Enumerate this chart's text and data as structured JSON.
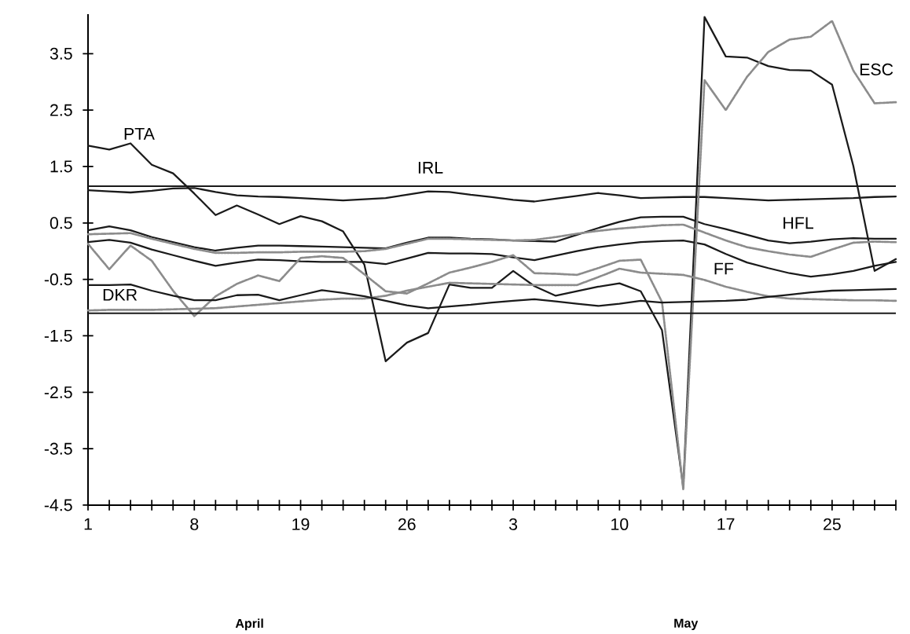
{
  "chart_data": {
    "type": "line",
    "categories": [
      "1",
      null,
      null,
      null,
      null,
      "8",
      null,
      null,
      null,
      null,
      "19",
      null,
      null,
      null,
      null,
      "26",
      null,
      null,
      null,
      null,
      "3",
      null,
      null,
      null,
      null,
      "10",
      null,
      null,
      null,
      null,
      "17",
      null,
      null,
      null,
      null,
      "25",
      null,
      null,
      null
    ],
    "ylim": [
      -4.5,
      4.2
    ],
    "yticks": [
      -4.5,
      -3.5,
      -2.5,
      -1.5,
      -0.5,
      0.5,
      1.5,
      2.5,
      3.5
    ],
    "annotations": [
      "April",
      "May"
    ],
    "ref_lines": [
      {
        "axis": "y",
        "value": 1.15,
        "color": "#1a1a1a"
      },
      {
        "axis": "y",
        "value": -1.1,
        "color": "#1a1a1a"
      }
    ],
    "series": [
      {
        "name": "PTA",
        "color": "#1a1a1a",
        "line_style": "solid",
        "values": [
          1.87,
          1.8,
          1.91,
          1.53,
          1.38,
          1.02,
          0.64,
          0.81,
          0.65,
          0.48,
          0.62,
          0.53,
          0.35,
          -0.24,
          -1.95,
          -1.62,
          -1.45,
          -0.59,
          -0.65,
          -0.65,
          -0.35,
          -0.62,
          -0.79,
          -0.71,
          -0.63,
          -0.57,
          -0.71,
          -1.4,
          -4.18,
          4.15,
          3.45,
          3.43,
          3.28,
          3.21,
          3.2,
          2.95,
          1.51,
          -0.35,
          -0.14
        ]
      },
      {
        "name": "IRL",
        "color": "#1a1a1a",
        "line_style": "solid",
        "values": [
          1.08,
          1.06,
          1.04,
          1.07,
          1.11,
          1.12,
          1.05,
          0.99,
          0.97,
          0.96,
          0.94,
          0.92,
          0.9,
          0.92,
          0.94,
          1.0,
          1.06,
          1.05,
          1.0,
          0.96,
          0.91,
          0.88,
          0.93,
          0.98,
          1.03,
          0.99,
          0.94,
          0.95,
          0.96,
          0.96,
          0.94,
          0.92,
          0.9,
          0.91,
          0.92,
          0.93,
          0.94,
          0.96,
          0.97
        ]
      },
      {
        "name": "HFL",
        "color": "#1a1a1a",
        "line_style": "solid",
        "values": [
          0.37,
          0.44,
          0.37,
          0.25,
          0.16,
          0.07,
          0.01,
          0.06,
          0.1,
          0.1,
          0.09,
          0.08,
          0.07,
          0.06,
          0.05,
          0.15,
          0.24,
          0.24,
          0.22,
          0.21,
          0.19,
          0.18,
          0.17,
          0.29,
          0.41,
          0.52,
          0.6,
          0.61,
          0.61,
          0.48,
          0.39,
          0.29,
          0.19,
          0.14,
          0.17,
          0.21,
          0.23,
          0.22,
          0.22
        ]
      },
      {
        "color": "#8c8c8c",
        "line_style": "dotted",
        "values": [
          0.3,
          0.31,
          0.32,
          0.22,
          0.13,
          0.04,
          -0.03,
          -0.03,
          -0.02,
          -0.02,
          -0.01,
          -0.01,
          -0.01,
          0.0,
          0.04,
          0.13,
          0.22,
          0.22,
          0.21,
          0.2,
          0.19,
          0.2,
          0.25,
          0.31,
          0.36,
          0.4,
          0.43,
          0.46,
          0.47,
          0.33,
          0.19,
          0.07,
          0.0,
          -0.06,
          -0.1,
          0.03,
          0.15,
          0.17,
          0.16
        ]
      },
      {
        "name": "FF",
        "color": "#1a1a1a",
        "line_style": "solid",
        "values": [
          0.16,
          0.2,
          0.15,
          0.03,
          -0.07,
          -0.17,
          -0.26,
          -0.2,
          -0.15,
          -0.16,
          -0.18,
          -0.19,
          -0.19,
          -0.19,
          -0.23,
          -0.13,
          -0.03,
          -0.04,
          -0.04,
          -0.05,
          -0.11,
          -0.16,
          -0.08,
          0.0,
          0.07,
          0.12,
          0.16,
          0.18,
          0.19,
          0.12,
          -0.05,
          -0.2,
          -0.3,
          -0.39,
          -0.45,
          -0.41,
          -0.35,
          -0.26,
          -0.19
        ]
      },
      {
        "name": "ESC",
        "color": "#8c8c8c",
        "line_style": "dotted",
        "values": [
          0.13,
          -0.32,
          0.1,
          -0.17,
          -0.7,
          -1.15,
          -0.8,
          -0.58,
          -0.43,
          -0.53,
          -0.12,
          -0.09,
          -0.12,
          -0.41,
          -0.71,
          -0.75,
          -0.57,
          -0.38,
          -0.29,
          -0.19,
          -0.07,
          -0.39,
          -0.4,
          -0.42,
          -0.3,
          -0.17,
          -0.15,
          -0.9,
          -4.22,
          3.03,
          2.5,
          3.09,
          3.53,
          3.75,
          3.8,
          4.08,
          3.2,
          2.62,
          2.64
        ]
      },
      {
        "color": "#8c8c8c",
        "line_style": "dotted",
        "values": [
          -1.05,
          -1.04,
          -1.04,
          -1.04,
          -1.03,
          -1.02,
          -1.01,
          -0.98,
          -0.95,
          -0.92,
          -0.89,
          -0.86,
          -0.84,
          -0.84,
          -0.79,
          -0.7,
          -0.63,
          -0.56,
          -0.57,
          -0.58,
          -0.59,
          -0.6,
          -0.6,
          -0.6,
          -0.46,
          -0.31,
          -0.38,
          -0.4,
          -0.42,
          -0.51,
          -0.63,
          -0.72,
          -0.8,
          -0.84,
          -0.85,
          -0.86,
          -0.87,
          -0.87,
          -0.88
        ]
      },
      {
        "name": "DKR",
        "color": "#1a1a1a",
        "line_style": "solid",
        "values": [
          -0.6,
          -0.6,
          -0.59,
          -0.7,
          -0.79,
          -0.87,
          -0.87,
          -0.78,
          -0.77,
          -0.87,
          -0.78,
          -0.69,
          -0.74,
          -0.8,
          -0.88,
          -0.96,
          -1.01,
          -0.98,
          -0.95,
          -0.91,
          -0.88,
          -0.85,
          -0.89,
          -0.93,
          -0.97,
          -0.93,
          -0.88,
          -0.91,
          -0.9,
          -0.89,
          -0.88,
          -0.86,
          -0.81,
          -0.77,
          -0.73,
          -0.7,
          -0.69,
          -0.68,
          -0.67
        ]
      }
    ]
  }
}
